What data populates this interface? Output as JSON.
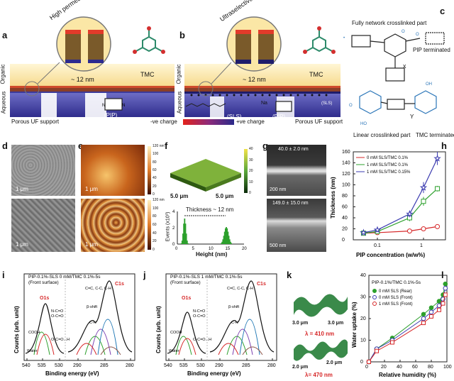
{
  "panel_labels": {
    "a": "a",
    "b": "b",
    "c": "c",
    "d": "d",
    "e": "e",
    "f": "f",
    "g": "g",
    "h": "h",
    "i": "i",
    "j": "j",
    "k": "k",
    "l": "l"
  },
  "panel_a": {
    "title": "High permeance nanofilm membrane",
    "organic": "Organic",
    "aqueous": "Aqueous",
    "thickness": "~ 12 nm",
    "tmc": "TMC",
    "pip": "(PIP)",
    "support": "Porous UF support"
  },
  "panel_b": {
    "title": "Ultraselective nanofilm membrane",
    "organic": "Organic",
    "aqueous": "Aqueous",
    "thickness": "~ 12 nm",
    "tmc": "TMC",
    "sls": "(SLS)",
    "sls_small": "(SLS)",
    "na": "Na",
    "pip": "(PIP)",
    "support": "Porous UF support"
  },
  "charge_bar": {
    "neg": "-ve charge",
    "pos": "+ve charge"
  },
  "panel_c": {
    "title": "Fully network crosslinked part",
    "pip_term": "PIP terminated",
    "linear": "Linear crosslinked part",
    "tmc_term": "TMC terminated",
    "x": "x",
    "y": "Y"
  },
  "panel_d": {
    "scale_top": "1 μm",
    "scale_bottom": "1 μm"
  },
  "panel_e": {
    "scale_top": "1 μm",
    "scale_bottom": "1 μm",
    "cbar_top": [
      "120 nm",
      "100",
      "80",
      "60",
      "40",
      "20",
      "0"
    ],
    "cbar_bottom": [
      "120 nm",
      "100",
      "80",
      "60",
      "40",
      "20",
      "0"
    ]
  },
  "panel_f": {
    "axis1": "5.0 μm",
    "axis2": "5.0 μm",
    "cbar": [
      "40",
      "30",
      "20",
      "10",
      "0"
    ],
    "annotation": "Thickness ~ 12 nm",
    "xlabel": "Height (nm)",
    "ylabel": "Events (x10³)",
    "xticks": [
      "0",
      "5",
      "10",
      "15",
      "20"
    ],
    "yticks": [
      "0",
      "2",
      "4"
    ]
  },
  "panel_g": {
    "top_label": "40.0 ± 2.0 nm",
    "top_scale": "200 nm",
    "bottom_label": "149.0 ± 15.0 nm",
    "bottom_scale": "500 nm"
  },
  "panel_k": {
    "top_a": "3.0 μm",
    "top_b": "3.0 μm",
    "top_lambda": "λ = 410 nm",
    "bot_a": "2.0 μm",
    "bot_b": "2.0 μm",
    "bot_lambda": "λ= 470 nm"
  },
  "colors": {
    "red": "#d62728",
    "green": "#2ca02c",
    "blue": "#3b3bb0",
    "purple": "#3b2a8f",
    "organic": "#fbe7a6",
    "aqueous": "#4b49a8",
    "film": "#9b4a2c"
  },
  "chart_data": [
    {
      "id": "h",
      "type": "line",
      "xscale": "log",
      "xlabel": "PIP concentration (w/w%)",
      "ylabel": "Thickness (nm)",
      "xlim": [
        0.03,
        3
      ],
      "ylim": [
        0,
        160
      ],
      "xticks": [
        0.1,
        1
      ],
      "xticklabels": [
        "0.1",
        "1"
      ],
      "yticks": [
        0,
        20,
        40,
        60,
        80,
        100,
        120,
        140,
        160
      ],
      "legend_position": "top-left",
      "series": [
        {
          "name": "0 mM SLS/TMC 0.1%",
          "color": "#d62728",
          "marker": "circle",
          "x": [
            0.05,
            0.1,
            0.5,
            1,
            2
          ],
          "y": [
            12,
            13,
            16,
            20,
            24
          ],
          "err": [
            3,
            3,
            3,
            3,
            3
          ]
        },
        {
          "name": "1 mM SLS/TMC 0.1%",
          "color": "#2ca02c",
          "marker": "square",
          "x": [
            0.05,
            0.1,
            0.5,
            1,
            2
          ],
          "y": [
            12,
            15,
            40,
            70,
            93
          ],
          "err": [
            3,
            4,
            6,
            8,
            5
          ]
        },
        {
          "name": "1 mM SLS/TMC 0.15%",
          "color": "#3b3bb0",
          "marker": "star",
          "x": [
            0.05,
            0.1,
            0.5,
            1,
            2
          ],
          "y": [
            13,
            18,
            47,
            95,
            148
          ],
          "err": [
            3,
            4,
            6,
            10,
            12
          ]
        }
      ]
    },
    {
      "id": "i",
      "type": "line",
      "title": "PIP-0.1%-SLS 0 mM/TMC 0.1%-5s",
      "subtitle": "(Front surface)",
      "xlabel": "Binding energy (eV)",
      "ylabel": "Counts (arb. unit)",
      "xlim": [
        540,
        280
      ],
      "xticks": [
        540,
        535,
        530,
        290,
        285,
        280
      ],
      "labels": [
        "O1s",
        "C1s",
        "COOH",
        "Water",
        "N-C=O",
        "O-C=O",
        "O-C=O...H",
        "C=C, C-C, C-H",
        "β-shift",
        "C-N"
      ]
    },
    {
      "id": "j",
      "type": "line",
      "title": "PIP-0.1%-SLS 1 mM/TMC 0.1%-5s",
      "subtitle": "(Front surface)",
      "xlabel": "Binding energy (eV)",
      "ylabel": "Counts (arb. unit)",
      "xlim": [
        540,
        280
      ],
      "xticks": [
        540,
        535,
        530,
        290,
        285,
        280
      ],
      "labels": [
        "O1s",
        "C1s",
        "COOH",
        "Water",
        "N-C=O",
        "O-C=O",
        "O-C=O...H",
        "C=C, C-C, C-H",
        "β-shift",
        "C-N"
      ]
    },
    {
      "id": "l",
      "type": "line",
      "title": "PIP-0.1%/TMC 0.1%-5s",
      "xlabel": "Relative humidity (%)",
      "ylabel": "Water uptake (%)",
      "xlim": [
        0,
        100
      ],
      "ylim": [
        0,
        40
      ],
      "xticks": [
        0,
        20,
        40,
        60,
        80,
        100
      ],
      "yticks": [
        0,
        10,
        20,
        30,
        40
      ],
      "legend_position": "top-left",
      "series": [
        {
          "name": "0 mM SLS (Rear)",
          "color": "#2ca02c",
          "marker": "circle-filled",
          "x": [
            0,
            10,
            30,
            70,
            80,
            90,
            95,
            98
          ],
          "y": [
            0,
            6,
            11,
            22,
            25,
            28,
            31,
            36
          ]
        },
        {
          "name": "0 mM SLS (Front)",
          "color": "#3b3bb0",
          "marker": "circle",
          "x": [
            0,
            10,
            30,
            70,
            80,
            90,
            95,
            98
          ],
          "y": [
            0,
            6,
            10,
            20,
            23,
            26,
            29,
            34
          ]
        },
        {
          "name": "1 mM SLS (Front)",
          "color": "#d62728",
          "marker": "square",
          "x": [
            0,
            10,
            30,
            70,
            80,
            90,
            95,
            98
          ],
          "y": [
            0,
            5,
            9,
            18,
            21,
            24,
            27,
            31
          ]
        }
      ]
    }
  ]
}
